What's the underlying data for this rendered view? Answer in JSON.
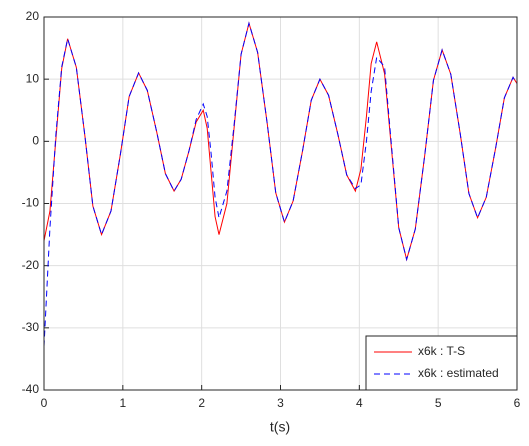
{
  "chart_data": {
    "type": "line",
    "xlabel": "t(s)",
    "x": [
      0,
      0.075,
      0.15,
      0.225,
      0.3,
      0.41,
      0.52,
      0.62,
      0.73,
      0.85,
      0.97,
      1.08,
      1.2,
      1.31,
      1.43,
      1.54,
      1.65,
      1.74,
      1.84,
      1.93,
      2.02,
      2.07,
      2.12,
      2.17,
      2.22,
      2.32,
      2.41,
      2.5,
      2.6,
      2.71,
      2.83,
      2.94,
      3.05,
      3.16,
      3.28,
      3.39,
      3.5,
      3.61,
      3.73,
      3.84,
      3.95,
      4.02,
      4.09,
      4.15,
      4.22,
      4.32,
      4.41,
      4.5,
      4.6,
      4.71,
      4.83,
      4.94,
      5.05,
      5.16,
      5.28,
      5.39,
      5.5,
      5.61,
      5.73,
      5.84,
      5.95,
      6
    ],
    "series": [
      {
        "name": "x6k : T-S",
        "color": "#ff0000",
        "linestyle": "solid",
        "values": [
          -16,
          -11.25,
          0.25,
          11.75,
          16.5,
          11.9,
          0.75,
          -10.4,
          -15,
          -11.2,
          -2,
          7.2,
          11,
          8.2,
          1.5,
          -5.2,
          -8,
          -6.1,
          -1.5,
          3.1,
          5,
          2.1,
          -5,
          -12.1,
          -15,
          -10,
          2,
          14,
          19,
          14.3,
          3,
          -8.3,
          -13,
          -9.6,
          -1.5,
          6.6,
          10,
          7.4,
          1,
          -5.4,
          -8,
          -4.5,
          4,
          12.5,
          16,
          10.9,
          -1.5,
          -13.9,
          -19,
          -14.1,
          -2.2,
          9.8,
          14.7,
          10.8,
          1.2,
          -8.4,
          -12.3,
          -9,
          -1,
          7,
          10.3,
          9.3
        ]
      },
      {
        "name": "x6k : estimated",
        "color": "#0000ff",
        "linestyle": "dashed",
        "values": [
          -33,
          -14,
          1,
          12,
          16.5,
          11.9,
          0.75,
          -10.4,
          -15,
          -11.2,
          -2,
          7.2,
          11,
          8.2,
          1.5,
          -5.2,
          -8,
          -6.1,
          -1.5,
          3.5,
          6,
          4,
          -2,
          -9,
          -12.3,
          -8,
          2.5,
          14,
          19,
          14.3,
          3,
          -8.3,
          -13,
          -9.6,
          -1.5,
          6.6,
          10,
          7.4,
          1,
          -5.4,
          -7.6,
          -7,
          0,
          8,
          13.5,
          12,
          -1,
          -13.9,
          -19,
          -14.1,
          -2.2,
          9.8,
          14.7,
          10.8,
          1.2,
          -8.4,
          -12.3,
          -9,
          -1,
          7,
          10.3,
          9.3
        ]
      }
    ],
    "xlim": [
      0,
      6
    ],
    "xticks": [
      0,
      1,
      2,
      3,
      4,
      5,
      6
    ],
    "ylim": [
      -40,
      20
    ],
    "yticks": [
      -40,
      -30,
      -20,
      -10,
      0,
      10,
      20
    ],
    "grid": true,
    "legend": "southeast"
  }
}
